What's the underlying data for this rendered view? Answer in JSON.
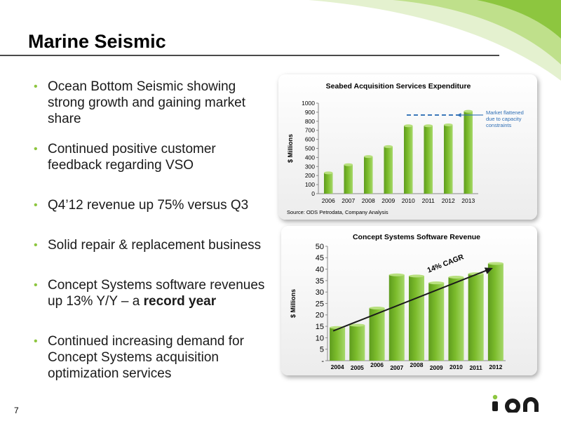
{
  "slide": {
    "title": "Marine Seismic",
    "page_number": "7",
    "logo_text": "ion",
    "accent_color": "#8dc63f"
  },
  "bullets": [
    {
      "text": "Ocean Bottom Seismic showing strong growth and gaining market share"
    },
    {
      "text": "Continued positive customer feedback regarding VSO"
    },
    {
      "text": "Q4’12 revenue up 75% versus Q3"
    },
    {
      "text": "Solid repair & replacement business"
    },
    {
      "text": "Concept Systems software revenues up 13% Y/Y – a ",
      "bold": "record year"
    },
    {
      "text": "Continued increasing demand for Concept Systems acquisition optimization services"
    }
  ],
  "chart_data": [
    {
      "type": "bar",
      "title": "Seabed Acquisition Services Expenditure",
      "ylabel": "$ Millions",
      "xlabel": "",
      "categories": [
        "2006",
        "2007",
        "2008",
        "2009",
        "2010",
        "2011",
        "2012",
        "2013"
      ],
      "values": [
        230,
        320,
        410,
        520,
        750,
        750,
        760,
        910
      ],
      "ylim": [
        0,
        1000
      ],
      "yticks": [
        "0",
        "100",
        "200",
        "300",
        "400",
        "500",
        "600",
        "700",
        "800",
        "900",
        "1000"
      ],
      "annotation": "Market flattened due to capacity constraints",
      "source": "Source: ODS Petrodata, Company Analysis",
      "bar_color": "#7cbc2c",
      "grid": false
    },
    {
      "type": "bar",
      "title": "Concept Systems Software Revenue",
      "ylabel": "$ Millions",
      "xlabel": "",
      "categories": [
        "2004",
        "2005",
        "2006",
        "2007",
        "2008",
        "2009",
        "2010",
        "2011",
        "2012"
      ],
      "values": [
        14.5,
        15.5,
        23,
        37.5,
        37,
        34,
        36.5,
        38,
        42.5
      ],
      "ylim": [
        0,
        50
      ],
      "yticks": [
        "-",
        "5",
        "10",
        "15",
        "20",
        "25",
        "30",
        "35",
        "40",
        "45",
        "50"
      ],
      "annotation": "14% CAGR",
      "bar_color": "#7cbc2c",
      "grid": false
    }
  ]
}
